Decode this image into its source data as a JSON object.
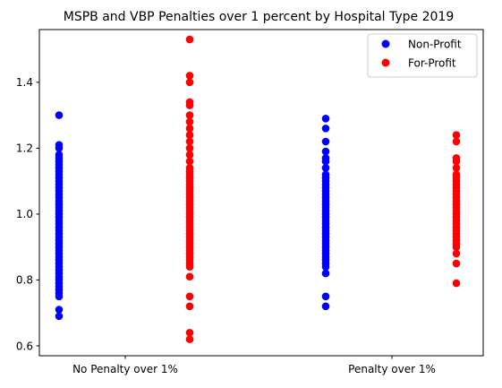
{
  "chart_data": {
    "type": "scatter",
    "title": "MSPB and VBP Penalties over 1 percent by Hospital Type 2019",
    "xlabel": "",
    "ylabel": "",
    "categories": [
      "No Penalty over 1%",
      "Penalty over 1%"
    ],
    "yticks": [
      "0.6",
      "0.8",
      "1.0",
      "1.2",
      "1.4"
    ],
    "ylim": [
      0.57,
      1.56
    ],
    "grid": false,
    "legend_position": "top-right",
    "series": [
      {
        "name": "Non-Profit",
        "color": "#0000ff",
        "points": [
          {
            "category": "No Penalty over 1%",
            "y": [
              0.69,
              0.71,
              0.75,
              0.76,
              0.77,
              0.78,
              0.79,
              0.8,
              0.81,
              0.82,
              0.83,
              0.84,
              0.85,
              0.86,
              0.87,
              0.88,
              0.89,
              0.9,
              0.91,
              0.92,
              0.93,
              0.94,
              0.95,
              0.96,
              0.97,
              0.98,
              0.99,
              1.0,
              1.01,
              1.02,
              1.03,
              1.04,
              1.05,
              1.06,
              1.07,
              1.08,
              1.09,
              1.1,
              1.11,
              1.12,
              1.13,
              1.14,
              1.15,
              1.16,
              1.17,
              1.18,
              1.2,
              1.21,
              1.3
            ]
          },
          {
            "category": "Penalty over 1%",
            "y": [
              0.72,
              0.75,
              0.82,
              0.84,
              0.85,
              0.86,
              0.87,
              0.88,
              0.89,
              0.9,
              0.91,
              0.92,
              0.93,
              0.94,
              0.95,
              0.96,
              0.97,
              0.98,
              0.99,
              1.0,
              1.01,
              1.02,
              1.03,
              1.04,
              1.05,
              1.06,
              1.07,
              1.08,
              1.09,
              1.1,
              1.11,
              1.12,
              1.14,
              1.16,
              1.17,
              1.19,
              1.22,
              1.26,
              1.29
            ]
          }
        ]
      },
      {
        "name": "For-Profit",
        "color": "#ff0000",
        "points": [
          {
            "category": "No Penalty over 1%",
            "y": [
              0.62,
              0.64,
              0.72,
              0.75,
              0.81,
              0.84,
              0.85,
              0.86,
              0.87,
              0.88,
              0.89,
              0.9,
              0.91,
              0.92,
              0.93,
              0.94,
              0.95,
              0.96,
              0.97,
              0.98,
              0.99,
              1.0,
              1.01,
              1.02,
              1.03,
              1.04,
              1.05,
              1.06,
              1.07,
              1.08,
              1.09,
              1.1,
              1.11,
              1.12,
              1.13,
              1.14,
              1.16,
              1.18,
              1.2,
              1.22,
              1.24,
              1.26,
              1.28,
              1.3,
              1.33,
              1.34,
              1.4,
              1.42,
              1.53
            ]
          },
          {
            "category": "Penalty over 1%",
            "y": [
              0.79,
              0.85,
              0.88,
              0.9,
              0.91,
              0.92,
              0.93,
              0.94,
              0.95,
              0.96,
              0.97,
              0.98,
              0.99,
              1.0,
              1.01,
              1.02,
              1.03,
              1.04,
              1.05,
              1.06,
              1.07,
              1.08,
              1.09,
              1.1,
              1.11,
              1.12,
              1.14,
              1.16,
              1.17,
              1.22,
              1.24
            ]
          }
        ]
      }
    ]
  }
}
